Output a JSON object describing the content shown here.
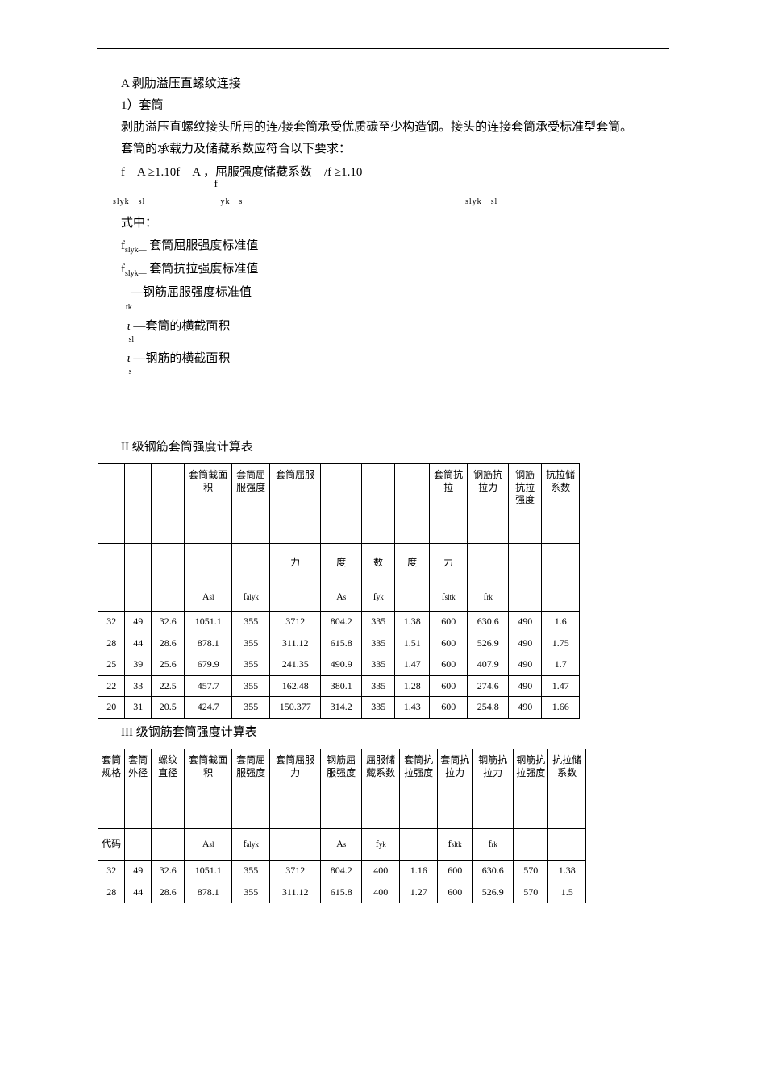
{
  "h1": "A 剥肋溢压直螺纹连接",
  "h2": "1）套筒",
  "p1": "剥肋溢压直螺纹接头所用的连/接套筒承受优质碳至少构造钢。接头的连接套筒承受标准型套筒。",
  "p2": "套筒的承载力及储藏系数应符合以下要求：",
  "formula": "f　A ≥1.10f　A ，屈服强度储藏系数　/f ≥1.10",
  "formula_sub_left": "slyk　sl",
  "formula_sub_mid": "f",
  "formula_sub_mid2": "yk　s",
  "formula_sub_right": "slyk　sl",
  "shizh": "式中：",
  "def1_sym": "f",
  "def1_sub": "slyk—",
  "def1_txt": "套筒屈服强度标准值",
  "def2_sym": "f",
  "def2_sub": "slyk—",
  "def2_txt": "套筒抗拉强度标准值",
  "def3_sub": "tk",
  "def3_txt": "—钢筋屈服强度标准值",
  "def4_sym": "ι",
  "def4_sub": "sl",
  "def4_txt": "—套筒的横截面积",
  "def5_sym": "ι",
  "def5_sub": "s",
  "def5_txt": "—钢筋的横截面积",
  "table1_title": "II 级钢筋套筒强度计算表",
  "table2_title": "III 级钢筋套筒强度计算表",
  "t1": {
    "headers_row1": [
      "",
      "",
      "",
      "套筒截面积",
      "套筒屈服强度",
      "套筒屈服",
      "",
      "",
      "",
      "套筒抗拉",
      "钢筋抗拉力",
      "钢筋抗拉强度",
      "抗拉储系数"
    ],
    "headers_row2": [
      "",
      "",
      "",
      "",
      "",
      "力",
      "度",
      "数",
      "度",
      "力",
      "",
      "",
      ""
    ],
    "headers_row3": [
      "",
      "",
      "",
      "Asl",
      "falyk",
      "",
      "As",
      "fyk",
      "",
      "fsltk",
      "frk",
      "",
      ""
    ],
    "rows": [
      [
        "32",
        "49",
        "32.6",
        "1051.1",
        "355",
        "3712",
        "804.2",
        "335",
        "1.38",
        "600",
        "630.6",
        "490",
        "1.6"
      ],
      [
        "28",
        "44",
        "28.6",
        "878.1",
        "355",
        "311.12",
        "615.8",
        "335",
        "1.51",
        "600",
        "526.9",
        "490",
        "1.75"
      ],
      [
        "25",
        "39",
        "25.6",
        "679.9",
        "355",
        "241.35",
        "490.9",
        "335",
        "1.47",
        "600",
        "407.9",
        "490",
        "1.7"
      ],
      [
        "22",
        "33",
        "22.5",
        "457.7",
        "355",
        "162.48",
        "380.1",
        "335",
        "1.28",
        "600",
        "274.6",
        "490",
        "1.47"
      ],
      [
        "20",
        "31",
        "20.5",
        "424.7",
        "355",
        "150.377",
        "314.2",
        "335",
        "1.43",
        "600",
        "254.8",
        "490",
        "1.66"
      ]
    ]
  },
  "t2": {
    "headers_row1": [
      "套筒规格",
      "套筒外径",
      "螺纹直径",
      "套筒截面积",
      "套筒屈服强度",
      "套筒屈服力",
      "钢筋屈服强度",
      "屈服储藏系数",
      "套筒抗拉强度",
      "套筒抗拉力",
      "钢筋抗拉力",
      "钢筋抗拉强度",
      "抗拉储系数"
    ],
    "headers_row2": [
      "代码",
      "",
      "",
      "Asl",
      "falyk",
      "",
      "As",
      "fyk",
      "",
      "fsltk",
      "frk",
      "",
      ""
    ],
    "rows": [
      [
        "32",
        "49",
        "32.6",
        "1051.1",
        "355",
        "3712",
        "804.2",
        "400",
        "1.16",
        "600",
        "630.6",
        "570",
        "1.38"
      ],
      [
        "28",
        "44",
        "28.6",
        "878.1",
        "355",
        "311.12",
        "615.8",
        "400",
        "1.27",
        "600",
        "526.9",
        "570",
        "1.5"
      ]
    ]
  }
}
